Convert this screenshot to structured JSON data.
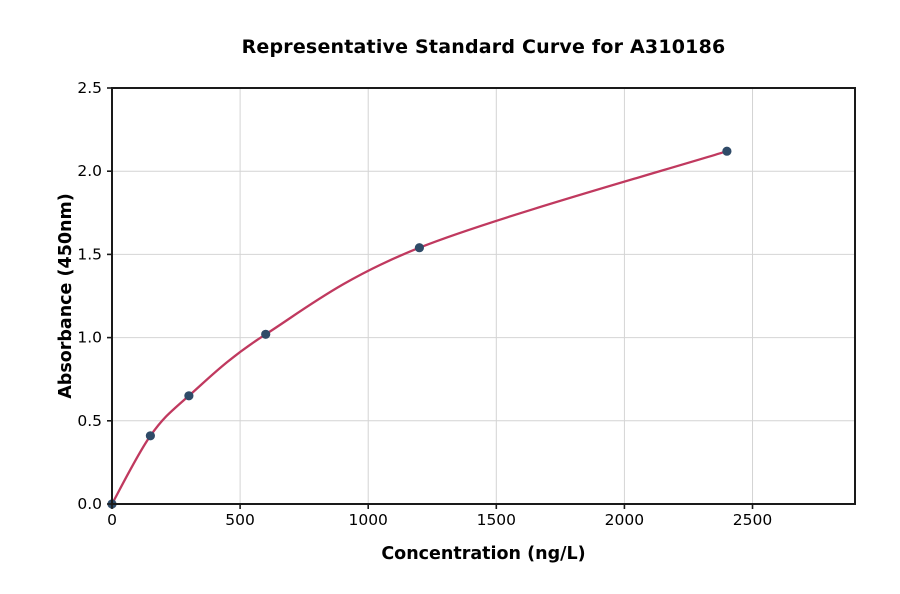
{
  "chart_data": {
    "type": "scatter",
    "title": "Representative Standard Curve for A310186",
    "xlabel": "Concentration (ng/L)",
    "ylabel": "Absorbance (450nm)",
    "xlim": [
      0,
      2900
    ],
    "ylim": [
      0,
      2.5
    ],
    "xticks": [
      0,
      500,
      1000,
      1500,
      2000,
      2500
    ],
    "xtick_labels": [
      "0",
      "500",
      "1000",
      "1500",
      "2000",
      "2500"
    ],
    "yticks": [
      0,
      0.5,
      1.0,
      1.5,
      2.0,
      2.5
    ],
    "ytick_labels": [
      "0.0",
      "0.5",
      "1.0",
      "1.5",
      "2.0",
      "2.5"
    ],
    "grid": true,
    "legend": "none",
    "series": [
      {
        "name": "standard-points",
        "points": [
          {
            "x": 0,
            "y": 0.0
          },
          {
            "x": 150,
            "y": 0.41
          },
          {
            "x": 300,
            "y": 0.65
          },
          {
            "x": 600,
            "y": 1.02
          },
          {
            "x": 1200,
            "y": 1.54
          },
          {
            "x": 2400,
            "y": 2.12
          }
        ]
      }
    ],
    "fit_curve_through_points": true,
    "colors": {
      "marker": "#2f4b68",
      "line": "#c0395f",
      "grid": "#d4d4d4",
      "spine": "#1a1a1a",
      "background": "#ffffff"
    }
  }
}
